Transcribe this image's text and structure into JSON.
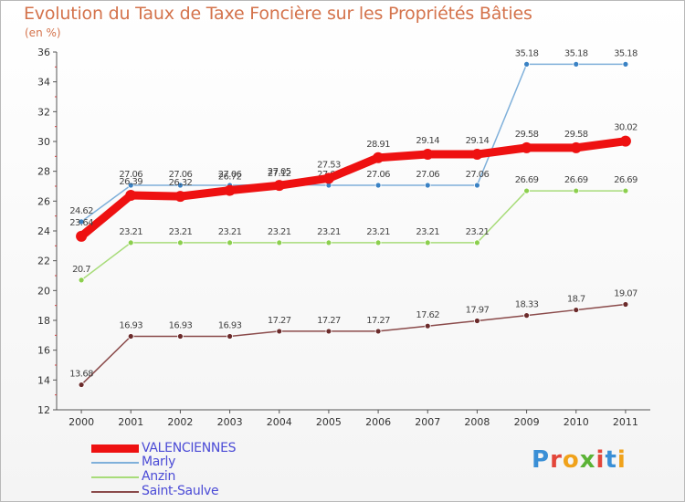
{
  "header": {
    "title": "Evolution du Taux de Taxe Foncière sur les Propriétés Bâties",
    "unit": "(en %)"
  },
  "branding": {
    "logo": "Proxiti",
    "letters": [
      "P",
      "r",
      "o",
      "x",
      "i",
      "t",
      "i"
    ],
    "letter_colors": [
      "#3a8fd6",
      "#e3463a",
      "#f0a21a",
      "#5bb336",
      "#e3463a",
      "#3a8fd6",
      "#f0a21a"
    ]
  },
  "chart_data": {
    "type": "line",
    "title": "Evolution du Taux de Taxe Foncière sur les Propriétés Bâties",
    "ylabel": "(en %)",
    "xlabel": "",
    "ylim": [
      12,
      36
    ],
    "yticks": [
      12,
      14,
      16,
      18,
      20,
      22,
      24,
      26,
      28,
      30,
      32,
      34,
      36
    ],
    "categories": [
      "2000",
      "2001",
      "2002",
      "2003",
      "2004",
      "2005",
      "2006",
      "2007",
      "2008",
      "2009",
      "2010",
      "2011"
    ],
    "series": [
      {
        "name": "Marly",
        "color": "#7fb0da",
        "marker": "#3a82c4",
        "values": [
          24.62,
          27.06,
          27.06,
          27.06,
          27.12,
          27.06,
          27.06,
          27.06,
          27.06,
          35.18,
          35.18,
          35.18
        ],
        "labels": [
          "24.62",
          "27.06",
          "27.06",
          "27.06",
          "27.12",
          "27.06",
          "27.06",
          "27.06",
          "27.06",
          "35.18",
          "35.18",
          "35.18"
        ]
      },
      {
        "name": "Anzin",
        "color": "#a8dc7a",
        "marker": "#8ccf4e",
        "values": [
          20.7,
          23.21,
          23.21,
          23.21,
          23.21,
          23.21,
          23.21,
          23.21,
          23.21,
          26.69,
          26.69,
          26.69
        ],
        "labels": [
          "20.7",
          "23.21",
          "23.21",
          "23.21",
          "23.21",
          "23.21",
          "23.21",
          "23.21",
          "23.21",
          "26.69",
          "26.69",
          "26.69"
        ]
      },
      {
        "name": "Saint-Saulve",
        "color": "#8a4a4a",
        "marker": "#6b2b2b",
        "values": [
          13.68,
          16.93,
          16.93,
          16.93,
          17.27,
          17.27,
          17.27,
          17.62,
          17.97,
          18.33,
          18.7,
          19.07
        ],
        "labels": [
          "13.68",
          "16.93",
          "16.93",
          "16.93",
          "17.27",
          "17.27",
          "17.27",
          "17.62",
          "17.97",
          "18.33",
          "18.7",
          "19.07"
        ]
      },
      {
        "name": "VALENCIENNES",
        "color": "#ee1111",
        "marker": "#ee1111",
        "values": [
          23.64,
          26.39,
          26.32,
          26.72,
          27.05,
          27.53,
          28.91,
          29.14,
          29.14,
          29.58,
          29.58,
          30.02
        ],
        "labels": [
          "23.64",
          "26.39",
          "26.32",
          "26.72",
          "27.05",
          "27.53",
          "28.91",
          "29.14",
          "29.14",
          "29.58",
          "29.58",
          "30.02"
        ]
      }
    ],
    "legend": [
      "VALENCIENNES",
      "Marly",
      "Anzin",
      "Saint-Saulve"
    ]
  }
}
